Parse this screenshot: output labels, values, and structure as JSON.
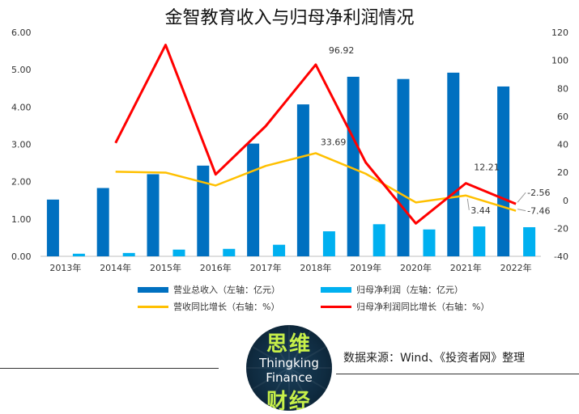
{
  "chart_data": {
    "type": "bar",
    "title": "金智教育收入与归母净利润情况",
    "categories": [
      "2013年",
      "2014年",
      "2015年",
      "2016年",
      "2017年",
      "2018年",
      "2019年",
      "2020年",
      "2021年",
      "2022年"
    ],
    "left_axis": {
      "ylim": [
        0,
        6
      ],
      "ticks": [
        "0.00",
        "1.00",
        "2.00",
        "3.00",
        "4.00",
        "5.00",
        "6.00"
      ]
    },
    "right_axis": {
      "ylim": [
        -40,
        120
      ],
      "ticks": [
        "-40",
        "-20",
        "0",
        "20",
        "40",
        "60",
        "80",
        "100",
        "120"
      ]
    },
    "series": [
      {
        "name": "营业总收入（左轴：亿元）",
        "kind": "bar",
        "axis": "left",
        "color": "#0070c0",
        "values": [
          1.52,
          1.83,
          2.2,
          2.43,
          3.02,
          4.07,
          4.81,
          4.75,
          4.92,
          4.55
        ]
      },
      {
        "name": "归母净利润（左轴：亿元）",
        "kind": "bar",
        "axis": "left",
        "color": "#00b0f0",
        "values": [
          0.07,
          0.09,
          0.18,
          0.2,
          0.31,
          0.67,
          0.86,
          0.72,
          0.8,
          0.78
        ]
      },
      {
        "name": "营收同比增长（右轴：%）",
        "kind": "line",
        "axis": "right",
        "color": "#ffc000",
        "values": [
          null,
          20.4,
          19.8,
          10.6,
          24.6,
          33.69,
          19.0,
          -1.5,
          3.44,
          -7.46
        ]
      },
      {
        "name": "归母净利润同比增长（右轴：%）",
        "kind": "line",
        "axis": "right",
        "color": "#ff0000",
        "values": [
          null,
          41.0,
          111.0,
          18.5,
          53.0,
          96.92,
          27.0,
          -16.5,
          12.21,
          -2.56
        ]
      }
    ],
    "data_labels": [
      {
        "series": 3,
        "index": 5,
        "text": "96.92"
      },
      {
        "series": 2,
        "index": 5,
        "text": "33.69"
      },
      {
        "series": 3,
        "index": 8,
        "text": "12.21"
      },
      {
        "series": 2,
        "index": 8,
        "text": "3.44"
      },
      {
        "series": 3,
        "index": 9,
        "text": "-2.56"
      },
      {
        "series": 2,
        "index": 9,
        "text": "-7.46"
      }
    ],
    "legend_position": "bottom",
    "grid": false
  },
  "footer": {
    "source": "数据来源：Wind、《投资者网》整理",
    "logo_top": "思维",
    "logo_en_1": "Thingking",
    "logo_en_2": "Finance",
    "logo_bottom": "财经"
  }
}
